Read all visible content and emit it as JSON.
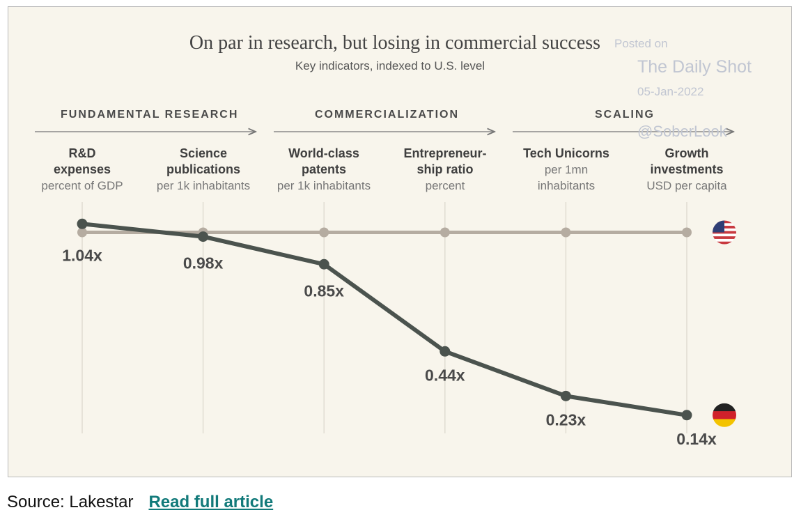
{
  "chart_data": {
    "type": "line",
    "title": "On par in research, but losing in commercial success",
    "subtitle": "Key indicators, indexed to U.S. level",
    "sections": [
      "FUNDAMENTAL RESEARCH",
      "COMMERCIALIZATION",
      "SCALING"
    ],
    "categories": [
      {
        "name": "R&D expenses",
        "name_lines": [
          "R&D",
          "expenses"
        ],
        "unit_lines": [
          "percent of GDP"
        ]
      },
      {
        "name": "Science publications",
        "name_lines": [
          "Science",
          "publications"
        ],
        "unit_lines": [
          "per 1k inhabitants"
        ]
      },
      {
        "name": "World-class patents",
        "name_lines": [
          "World-class",
          "patents"
        ],
        "unit_lines": [
          "per 1k inhabitants"
        ]
      },
      {
        "name": "Entrepreneurship ratio",
        "name_lines": [
          "Entrepreneur-",
          "ship ratio"
        ],
        "unit_lines": [
          "percent"
        ]
      },
      {
        "name": "Tech Unicorns",
        "name_lines": [
          "Tech Unicorns"
        ],
        "unit_lines": [
          "per 1mn",
          "inhabitants"
        ]
      },
      {
        "name": "Growth investments",
        "name_lines": [
          "Growth",
          "investments"
        ],
        "unit_lines": [
          "USD per capita"
        ]
      }
    ],
    "series": [
      {
        "name": "U.S.",
        "flag": "us",
        "color": "#b5aca1",
        "values": [
          1.0,
          1.0,
          1.0,
          1.0,
          1.0,
          1.0
        ]
      },
      {
        "name": "Germany",
        "flag": "de",
        "color": "#4b534e",
        "values": [
          1.04,
          0.98,
          0.85,
          0.44,
          0.23,
          0.14
        ],
        "labels": [
          "1.04x",
          "0.98x",
          "0.85x",
          "0.44x",
          "0.23x",
          "0.14x"
        ]
      }
    ],
    "ylim": [
      0.1,
      1.1
    ]
  },
  "watermark": {
    "line1": "Posted on",
    "line2": "The Daily Shot",
    "line3": "05-Jan-2022",
    "line4": "@SoberLook"
  },
  "colors": {
    "background": "#f8f5ec",
    "germany_line": "#4b534e",
    "us_line": "#b5aca1",
    "guide": "#e0dcd2"
  },
  "footer": {
    "source_text": "Source: Lakestar",
    "link_text": "Read full article"
  }
}
